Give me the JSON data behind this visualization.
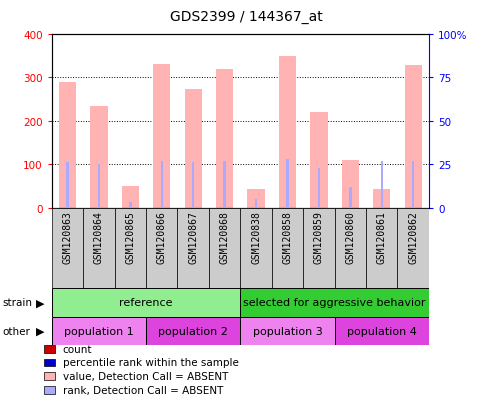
{
  "title": "GDS2399 / 144367_at",
  "samples": [
    "GSM120863",
    "GSM120864",
    "GSM120865",
    "GSM120866",
    "GSM120867",
    "GSM120868",
    "GSM120838",
    "GSM120858",
    "GSM120859",
    "GSM120860",
    "GSM120861",
    "GSM120862"
  ],
  "bar_values": [
    290,
    235,
    50,
    330,
    272,
    320,
    42,
    350,
    220,
    110,
    42,
    328
  ],
  "rank_values": [
    26,
    25,
    3,
    27,
    26,
    27,
    5,
    28,
    23,
    12,
    27,
    27
  ],
  "detection_call": [
    "A",
    "A",
    "A",
    "A",
    "A",
    "A",
    "A",
    "A",
    "A",
    "A",
    "A",
    "A"
  ],
  "bar_color_absent": "#ffb3b3",
  "bar_color_present": "#cc0000",
  "rank_color_absent": "#aaaaff",
  "rank_color_present": "#0000cc",
  "ylim_left": [
    0,
    400
  ],
  "ylim_right": [
    0,
    100
  ],
  "yticks_left": [
    0,
    100,
    200,
    300,
    400
  ],
  "yticks_right": [
    0,
    25,
    50,
    75,
    100
  ],
  "yticklabels_left": [
    "0",
    "100",
    "200",
    "300",
    "400"
  ],
  "yticklabels_right": [
    "0",
    "25",
    "50",
    "75",
    "100%"
  ],
  "strain_groups": [
    {
      "label": "reference",
      "start": 0,
      "end": 6,
      "color": "#90EE90"
    },
    {
      "label": "selected for aggressive behavior",
      "start": 6,
      "end": 12,
      "color": "#33cc33"
    }
  ],
  "other_groups": [
    {
      "label": "population 1",
      "start": 0,
      "end": 3,
      "color": "#ee82ee"
    },
    {
      "label": "population 2",
      "start": 3,
      "end": 6,
      "color": "#dd44dd"
    },
    {
      "label": "population 3",
      "start": 6,
      "end": 9,
      "color": "#ee82ee"
    },
    {
      "label": "population 4",
      "start": 9,
      "end": 12,
      "color": "#dd44dd"
    }
  ],
  "legend_items": [
    {
      "label": "count",
      "color": "#cc0000"
    },
    {
      "label": "percentile rank within the sample",
      "color": "#0000cc"
    },
    {
      "label": "value, Detection Call = ABSENT",
      "color": "#ffb3b3"
    },
    {
      "label": "rank, Detection Call = ABSENT",
      "color": "#aaaaff"
    }
  ],
  "bar_width": 0.55,
  "rank_bar_width": 0.08,
  "title_fontsize": 10,
  "label_fontsize": 7,
  "tick_fontsize": 7.5,
  "legend_fontsize": 7.5,
  "group_fontsize": 8,
  "sample_cell_color": "#cccccc",
  "grid_dotted_color": "black"
}
